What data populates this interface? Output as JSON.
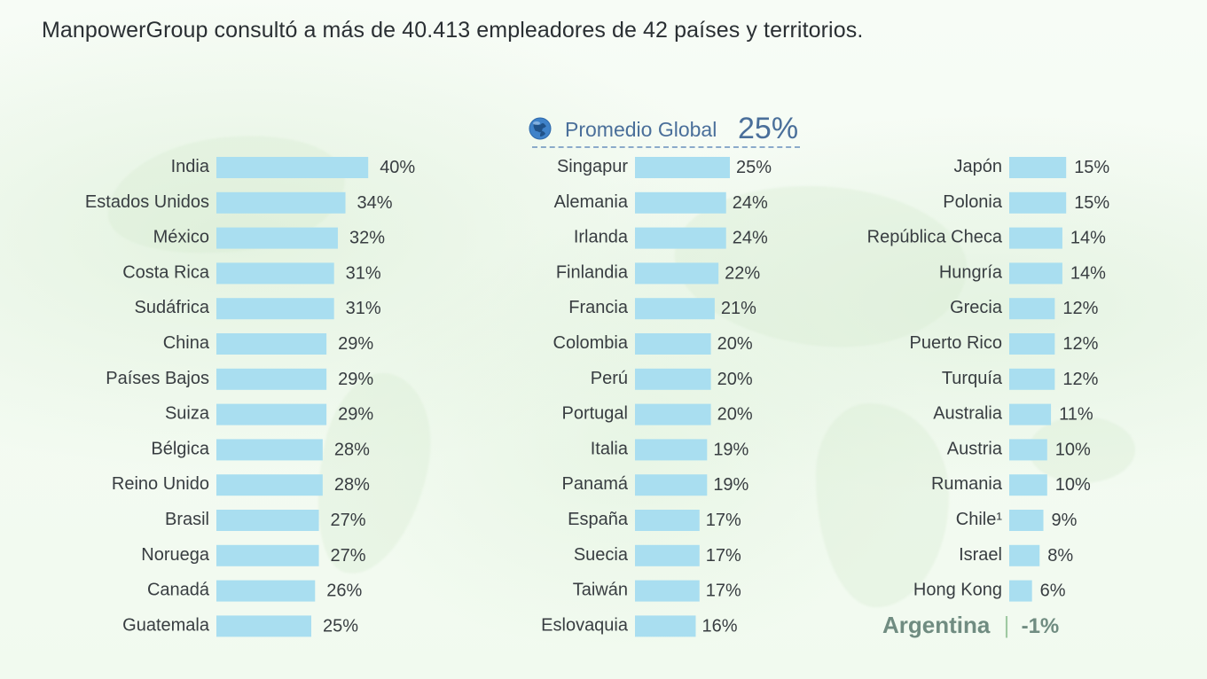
{
  "header": {
    "title": "ManpowerGroup consultó a más de 40.413 empleadores de 42 países y territorios."
  },
  "global_average": {
    "label": "Promedio Global",
    "value": "25%",
    "icon": "globe-icon"
  },
  "note": {
    "country": "Argentina",
    "divider": "|",
    "value": "-1%"
  },
  "chart_data": {
    "type": "bar",
    "unit": "%",
    "scale_max": 40,
    "colors": {
      "bar": "#a9def0",
      "text": "#383d41",
      "accent": "#4a6f9a",
      "note": "#708c81"
    },
    "columns": [
      {
        "categories": [
          "India",
          "Estados Unidos",
          "México",
          "Costa Rica",
          "Sudáfrica",
          "China",
          "Países Bajos",
          "Suiza",
          "Bélgica",
          "Reino Unido",
          "Brasil",
          "Noruega",
          "Canadá",
          "Guatemala"
        ],
        "values": [
          40,
          34,
          32,
          31,
          31,
          29,
          29,
          29,
          28,
          28,
          27,
          27,
          26,
          25
        ],
        "labels": [
          "40%",
          "34%",
          "32%",
          "31%",
          "31%",
          "29%",
          "29%",
          "29%",
          "28%",
          "28%",
          "27%",
          "27%",
          "26%",
          "25%"
        ]
      },
      {
        "categories": [
          "Singapur",
          "Alemania",
          "Irlanda",
          "Finlandia",
          "Francia",
          "Colombia",
          "Perú",
          "Portugal",
          "Italia",
          "Panamá",
          "España",
          "Suecia",
          "Taiwán",
          "Eslovaquia"
        ],
        "values": [
          25,
          24,
          24,
          22,
          21,
          20,
          20,
          20,
          19,
          19,
          17,
          17,
          17,
          16
        ],
        "labels": [
          "25%",
          "24%",
          "24%",
          "22%",
          "21%",
          "20%",
          "20%",
          "20%",
          "19%",
          "19%",
          "17%",
          "17%",
          "17%",
          "16%"
        ]
      },
      {
        "categories": [
          "Japón",
          "Polonia",
          "República Checa",
          "Hungría",
          "Grecia",
          "Puerto Rico",
          "Turquía",
          "Australia",
          "Austria",
          "Rumania",
          "Chile¹",
          "Israel",
          "Hong Kong"
        ],
        "values": [
          15,
          15,
          14,
          14,
          12,
          12,
          12,
          11,
          10,
          10,
          9,
          8,
          6
        ],
        "labels": [
          "15%",
          "15%",
          "14%",
          "14%",
          "12%",
          "12%",
          "12%",
          "11%",
          "10%",
          "10%",
          "9%",
          "8%",
          "6%"
        ]
      }
    ]
  }
}
